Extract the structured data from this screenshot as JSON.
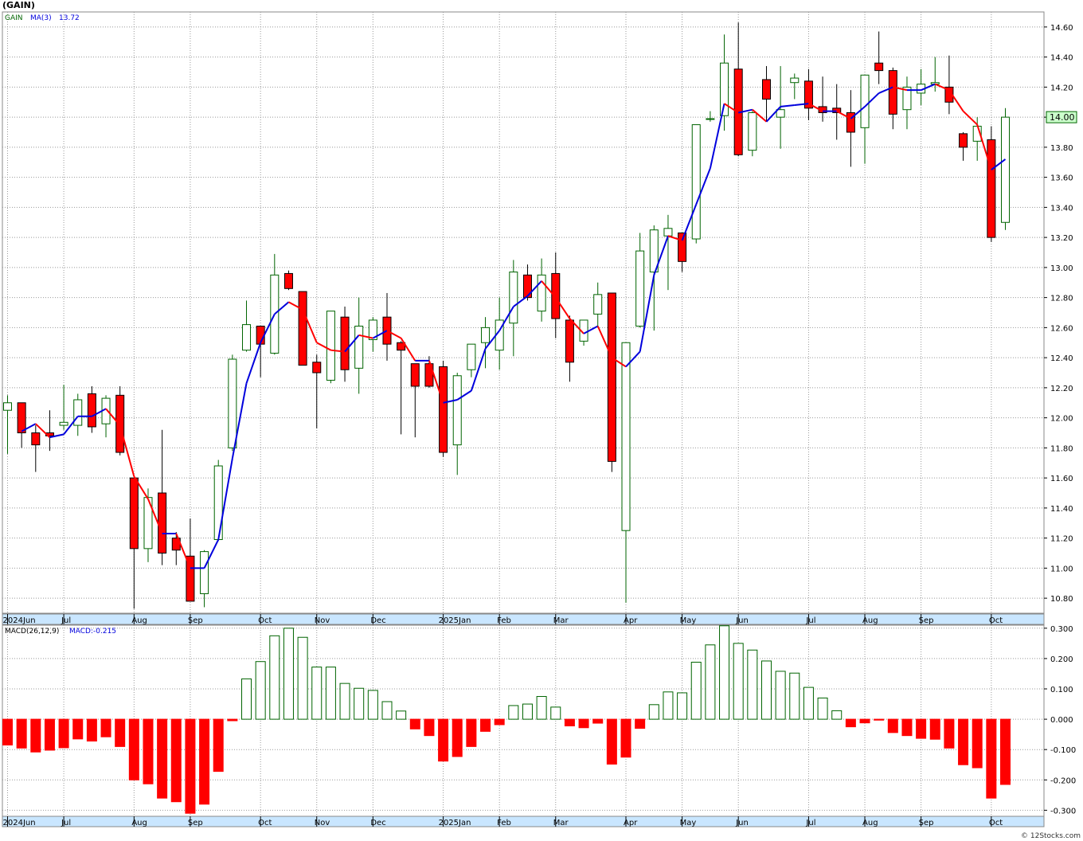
{
  "header": {
    "title": "(GAIN)"
  },
  "legends": {
    "main_symbol": "GAIN",
    "main_ma_label": "MA(3)",
    "main_ma_value": "13.72",
    "macd_label": "MACD(26,12,9)",
    "macd_value_label": "MACD:-0.215",
    "last_price": "14.00"
  },
  "footer": {
    "credit": "© 12Stocks.com"
  },
  "colors": {
    "up": "#006400",
    "down": "#ff0000",
    "ma_up": "#0000dd",
    "ma_down": "#ff0000",
    "axis_band": "#c9e6ff",
    "grid": "#999999"
  },
  "chart_data": [
    {
      "type": "candlestick",
      "interval": "weekly",
      "ylim": [
        10.7,
        14.7
      ],
      "y_ticks": [
        "14.60",
        "14.40",
        "14.20",
        "14.00",
        "13.80",
        "13.60",
        "13.40",
        "13.20",
        "13.00",
        "12.80",
        "12.60",
        "12.40",
        "12.20",
        "12.00",
        "11.80",
        "11.60",
        "11.40",
        "11.20",
        "11.00",
        "10.80"
      ],
      "x_ticks": [
        {
          "label": "2024Jun",
          "i": 0
        },
        {
          "label": "Jul",
          "i": 4
        },
        {
          "label": "Aug",
          "i": 9
        },
        {
          "label": "Sep",
          "i": 13
        },
        {
          "label": "Oct",
          "i": 18
        },
        {
          "label": "Nov",
          "i": 22
        },
        {
          "label": "Dec",
          "i": 26
        },
        {
          "label": "2025Jan",
          "i": 31
        },
        {
          "label": "Feb",
          "i": 35
        },
        {
          "label": "Mar",
          "i": 39
        },
        {
          "label": "Apr",
          "i": 44
        },
        {
          "label": "May",
          "i": 48
        },
        {
          "label": "Jun",
          "i": 52
        },
        {
          "label": "Jul",
          "i": 57
        },
        {
          "label": "Aug",
          "i": 61
        },
        {
          "label": "Sep",
          "i": 65
        },
        {
          "label": "Oct",
          "i": 70
        }
      ],
      "ohlc": [
        [
          12.05,
          12.15,
          11.76,
          12.1
        ],
        [
          12.1,
          12.1,
          11.8,
          11.9
        ],
        [
          11.9,
          11.95,
          11.64,
          11.82
        ],
        [
          11.9,
          12.05,
          11.78,
          11.88
        ],
        [
          11.95,
          12.22,
          11.92,
          11.97
        ],
        [
          11.95,
          12.16,
          11.88,
          12.12
        ],
        [
          12.16,
          12.21,
          11.9,
          11.94
        ],
        [
          11.96,
          12.15,
          11.87,
          12.13
        ],
        [
          12.15,
          12.21,
          11.75,
          11.77
        ],
        [
          11.6,
          11.6,
          10.73,
          11.13
        ],
        [
          11.13,
          11.53,
          11.04,
          11.47
        ],
        [
          11.5,
          11.92,
          11.02,
          11.1
        ],
        [
          11.2,
          11.24,
          11.02,
          11.12
        ],
        [
          11.08,
          11.33,
          10.78,
          10.78
        ],
        [
          10.83,
          11.12,
          10.74,
          11.11
        ],
        [
          11.19,
          11.72,
          11.18,
          11.68
        ],
        [
          11.8,
          12.42,
          11.78,
          12.39
        ],
        [
          12.45,
          12.78,
          12.44,
          12.62
        ],
        [
          12.61,
          12.61,
          12.27,
          12.49
        ],
        [
          12.43,
          13.09,
          12.42,
          12.95
        ],
        [
          12.96,
          12.98,
          12.85,
          12.86
        ],
        [
          12.84,
          12.84,
          12.35,
          12.35
        ],
        [
          12.37,
          12.42,
          11.93,
          12.3
        ],
        [
          12.25,
          12.71,
          12.23,
          12.71
        ],
        [
          12.67,
          12.74,
          12.24,
          12.32
        ],
        [
          12.33,
          12.8,
          12.16,
          12.61
        ],
        [
          12.52,
          12.67,
          12.44,
          12.65
        ],
        [
          12.67,
          12.83,
          12.38,
          12.49
        ],
        [
          12.5,
          12.51,
          11.89,
          12.45
        ],
        [
          12.36,
          12.36,
          11.87,
          12.21
        ],
        [
          12.36,
          12.41,
          12.2,
          12.21
        ],
        [
          12.34,
          12.38,
          11.74,
          11.77
        ],
        [
          11.82,
          12.3,
          11.62,
          12.28
        ],
        [
          12.32,
          12.49,
          12.27,
          12.49
        ],
        [
          12.5,
          12.67,
          12.33,
          12.6
        ],
        [
          12.45,
          12.8,
          12.32,
          12.65
        ],
        [
          12.63,
          13.05,
          12.41,
          12.97
        ],
        [
          12.95,
          13.02,
          12.78,
          12.8
        ],
        [
          12.71,
          13.06,
          12.64,
          12.95
        ],
        [
          12.96,
          13.1,
          12.53,
          12.66
        ],
        [
          12.65,
          12.68,
          12.24,
          12.37
        ],
        [
          12.51,
          12.64,
          12.48,
          12.65
        ],
        [
          12.69,
          12.9,
          12.61,
          12.82
        ],
        [
          12.83,
          12.83,
          11.64,
          11.71
        ],
        [
          11.25,
          12.5,
          10.77,
          12.5
        ],
        [
          12.61,
          13.23,
          12.6,
          13.11
        ],
        [
          12.97,
          13.28,
          12.58,
          13.25
        ],
        [
          13.21,
          13.35,
          12.85,
          13.26
        ],
        [
          13.23,
          13.23,
          12.97,
          13.04
        ],
        [
          13.19,
          13.94,
          13.16,
          13.95
        ],
        [
          13.99,
          14.04,
          13.97,
          13.99
        ],
        [
          14.01,
          14.55,
          13.91,
          14.36
        ],
        [
          14.32,
          14.63,
          13.74,
          13.75
        ],
        [
          13.78,
          14.04,
          13.74,
          14.03
        ],
        [
          14.25,
          14.34,
          13.97,
          14.12
        ],
        [
          14.0,
          14.34,
          13.79,
          14.05
        ],
        [
          14.23,
          14.29,
          14.12,
          14.26
        ],
        [
          14.24,
          14.32,
          13.98,
          14.06
        ],
        [
          14.07,
          14.27,
          13.97,
          14.03
        ],
        [
          14.06,
          14.22,
          13.85,
          14.03
        ],
        [
          14.03,
          14.18,
          13.67,
          13.9
        ],
        [
          13.93,
          14.26,
          13.69,
          14.28
        ],
        [
          14.36,
          14.57,
          14.22,
          14.31
        ],
        [
          14.31,
          14.33,
          13.92,
          14.02
        ],
        [
          14.05,
          14.27,
          13.92,
          14.2
        ],
        [
          14.16,
          14.32,
          14.08,
          14.22
        ],
        [
          14.22,
          14.4,
          14.17,
          14.23
        ],
        [
          14.2,
          14.41,
          14.02,
          14.1
        ],
        [
          13.89,
          13.9,
          13.71,
          13.8
        ],
        [
          13.84,
          14.0,
          13.71,
          13.94
        ],
        [
          13.85,
          13.94,
          13.17,
          13.2
        ],
        [
          13.3,
          14.06,
          13.25,
          14.0
        ]
      ],
      "ma": [
        null,
        11.91,
        11.96,
        11.87,
        11.89,
        12.01,
        12.01,
        12.06,
        11.95,
        11.61,
        11.46,
        11.23,
        11.23,
        11.0,
        11.0,
        11.19,
        11.73,
        12.23,
        12.5,
        12.69,
        12.77,
        12.72,
        12.5,
        12.45,
        12.44,
        12.55,
        12.53,
        12.58,
        12.53,
        12.38,
        12.38,
        12.1,
        12.12,
        12.18,
        12.46,
        12.58,
        12.74,
        12.81,
        12.91,
        12.8,
        12.66,
        12.56,
        12.61,
        12.4,
        12.34,
        12.44,
        12.95,
        13.21,
        13.18,
        13.42,
        13.66,
        14.09,
        14.03,
        14.05,
        13.97,
        14.07,
        14.08,
        14.09,
        14.04,
        14.04,
        13.99,
        14.07,
        14.16,
        14.2,
        14.18,
        14.18,
        14.22,
        14.18,
        14.04,
        13.95,
        13.65,
        13.72
      ]
    },
    {
      "type": "bar",
      "name": "MACD",
      "ylim": [
        -0.32,
        0.31
      ],
      "y_ticks": [
        "0.300",
        "0.200",
        "0.100",
        "0.000",
        "-0.100",
        "-0.200",
        "-0.300"
      ],
      "values": [
        -0.085,
        -0.095,
        -0.108,
        -0.102,
        -0.094,
        -0.065,
        -0.072,
        -0.058,
        -0.09,
        -0.2,
        -0.213,
        -0.26,
        -0.272,
        -0.31,
        -0.28,
        -0.172,
        -0.005,
        0.133,
        0.19,
        0.275,
        0.3,
        0.27,
        0.172,
        0.172,
        0.118,
        0.102,
        0.095,
        0.058,
        0.027,
        -0.032,
        -0.054,
        -0.138,
        -0.123,
        -0.09,
        -0.04,
        -0.018,
        0.045,
        0.05,
        0.075,
        0.04,
        -0.022,
        -0.028,
        -0.013,
        -0.148,
        -0.125,
        -0.03,
        0.048,
        0.09,
        0.087,
        0.188,
        0.245,
        0.308,
        0.25,
        0.228,
        0.192,
        0.158,
        0.152,
        0.105,
        0.07,
        0.028,
        -0.025,
        -0.012,
        -0.003,
        -0.044,
        -0.054,
        -0.063,
        -0.066,
        -0.095,
        -0.15,
        -0.16,
        -0.26,
        -0.215
      ]
    }
  ]
}
